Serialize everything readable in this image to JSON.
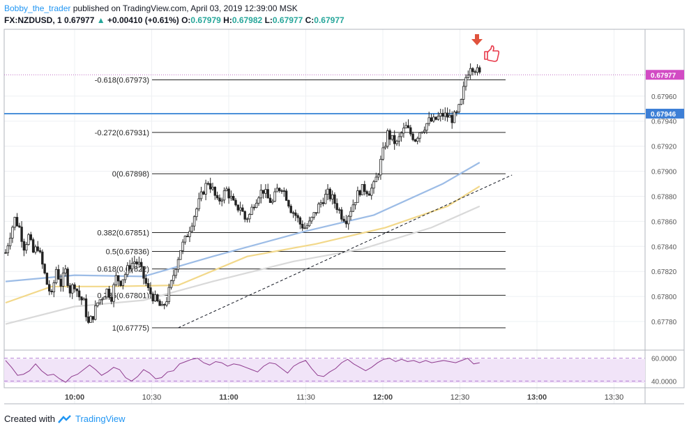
{
  "header": {
    "author": "Bobby_the_trader",
    "published_text": " published on TradingView.com, April 03, 2019 12:39:00 MSK"
  },
  "ohlc": {
    "symbol": "FX:NZDUSD, 1",
    "last": "0.67977",
    "arrow": "▲",
    "change": "+0.00410 (+0.61%)",
    "o_label": "O:",
    "o": "0.67979",
    "h_label": "H:",
    "h": "0.67982",
    "l_label": "L:",
    "l": "0.67977",
    "c_label": "C:",
    "c": "0.67977"
  },
  "footer": {
    "created_with": "Created with",
    "brand": "TradingView"
  },
  "colors": {
    "up": "#26a69a",
    "ma_blue": "#9cbce6",
    "ma_yellow": "#f2d88a",
    "ma_gray": "#d9d9d9",
    "level_line": "#2962ff",
    "price_badge": "#d24bc4",
    "rsi_line": "#8e3b8e",
    "rsi_band": "#f1e4f8",
    "arrow_down": "#e0533d",
    "thumb": "#e8394a"
  },
  "chart_data": {
    "type": "candlestick",
    "y_ticks": [
      "0.67960",
      "0.67940",
      "0.67920",
      "0.67900",
      "0.67880",
      "0.67860",
      "0.67840",
      "0.67820",
      "0.67800",
      "0.67780"
    ],
    "x_ticks": [
      "10:00",
      "10:30",
      "11:00",
      "11:30",
      "12:00",
      "12:30",
      "13:00",
      "13:30"
    ],
    "ylim": [
      0.67765,
      0.6801
    ],
    "current_price": "0.67977",
    "horizontal_level": "0.67946",
    "fib_levels": [
      {
        "label": "-0.618(0.67973)",
        "value": 0.67973
      },
      {
        "label": "-0.272(0.67931)",
        "value": 0.67931
      },
      {
        "label": "0(0.67898)",
        "value": 0.67898
      },
      {
        "label": "0.382(0.67851)",
        "value": 0.67851
      },
      {
        "label": "0.5(0.67836)",
        "value": 0.67836
      },
      {
        "label": "0.618(0.67822)",
        "value": 0.67822
      },
      {
        "label": "0.786(0.67801)",
        "value": 0.67801
      },
      {
        "label": "1(0.67775)",
        "value": 0.67775
      }
    ],
    "trendline": {
      "from": [
        75,
        0.67775
      ],
      "to": [
        214,
        0.67897
      ]
    },
    "price_series": [
      [
        0,
        0.67835
      ],
      [
        2,
        0.6785
      ],
      [
        4,
        0.67862
      ],
      [
        6,
        0.67855
      ],
      [
        8,
        0.6784
      ],
      [
        10,
        0.67848
      ],
      [
        12,
        0.67835
      ],
      [
        14,
        0.6784
      ],
      [
        16,
        0.67825
      ],
      [
        18,
        0.6781
      ],
      [
        20,
        0.678
      ],
      [
        22,
        0.67822
      ],
      [
        24,
        0.6781
      ],
      [
        26,
        0.6782
      ],
      [
        28,
        0.67805
      ],
      [
        30,
        0.6781
      ],
      [
        32,
        0.678
      ],
      [
        34,
        0.67795
      ],
      [
        36,
        0.67778
      ],
      [
        38,
        0.67785
      ],
      [
        40,
        0.67795
      ],
      [
        42,
        0.678
      ],
      [
        44,
        0.67805
      ],
      [
        46,
        0.678
      ],
      [
        48,
        0.67815
      ],
      [
        50,
        0.67812
      ],
      [
        52,
        0.67818
      ],
      [
        54,
        0.67825
      ],
      [
        56,
        0.67828
      ],
      [
        58,
        0.67825
      ],
      [
        60,
        0.67815
      ],
      [
        62,
        0.67805
      ],
      [
        64,
        0.678
      ],
      [
        66,
        0.67795
      ],
      [
        68,
        0.6779
      ],
      [
        70,
        0.67798
      ],
      [
        72,
        0.6781
      ],
      [
        74,
        0.67825
      ],
      [
        76,
        0.67838
      ],
      [
        78,
        0.67845
      ],
      [
        80,
        0.67855
      ],
      [
        82,
        0.67865
      ],
      [
        84,
        0.67875
      ],
      [
        86,
        0.67885
      ],
      [
        88,
        0.67892
      ],
      [
        90,
        0.67885
      ],
      [
        92,
        0.67875
      ],
      [
        94,
        0.6788
      ],
      [
        96,
        0.67885
      ],
      [
        98,
        0.67878
      ],
      [
        100,
        0.6787
      ],
      [
        102,
        0.67872
      ],
      [
        104,
        0.67862
      ],
      [
        106,
        0.67865
      ],
      [
        108,
        0.67875
      ],
      [
        110,
        0.67882
      ],
      [
        112,
        0.67885
      ],
      [
        114,
        0.67878
      ],
      [
        116,
        0.67875
      ],
      [
        118,
        0.67885
      ],
      [
        120,
        0.67888
      ],
      [
        122,
        0.6788
      ],
      [
        124,
        0.6787
      ],
      [
        126,
        0.67865
      ],
      [
        128,
        0.67858
      ],
      [
        130,
        0.67855
      ],
      [
        132,
        0.67858
      ],
      [
        134,
        0.67865
      ],
      [
        136,
        0.67872
      ],
      [
        138,
        0.67878
      ],
      [
        140,
        0.67882
      ],
      [
        142,
        0.67878
      ],
      [
        144,
        0.67872
      ],
      [
        146,
        0.67865
      ],
      [
        148,
        0.67862
      ],
      [
        150,
        0.6787
      ],
      [
        152,
        0.67878
      ],
      [
        154,
        0.67885
      ],
      [
        156,
        0.67886
      ],
      [
        158,
        0.67884
      ],
      [
        160,
        0.67888
      ],
      [
        162,
        0.679
      ],
      [
        164,
        0.67915
      ],
      [
        166,
        0.6793
      ],
      [
        168,
        0.67925
      ],
      [
        170,
        0.67922
      ],
      [
        172,
        0.6793
      ],
      [
        174,
        0.67935
      ],
      [
        176,
        0.6793
      ],
      [
        178,
        0.67926
      ],
      [
        180,
        0.67932
      ],
      [
        182,
        0.67936
      ],
      [
        184,
        0.6794
      ],
      [
        186,
        0.6794
      ],
      [
        188,
        0.67943
      ],
      [
        190,
        0.67945
      ],
      [
        192,
        0.67944
      ],
      [
        194,
        0.67942
      ],
      [
        196,
        0.67945
      ],
      [
        198,
        0.67955
      ],
      [
        200,
        0.67975
      ],
      [
        202,
        0.67985
      ],
      [
        204,
        0.67982
      ],
      [
        206,
        0.67977
      ]
    ],
    "ma_series": [
      {
        "color": "#9cbce6",
        "points": [
          [
            0,
            0.67812
          ],
          [
            30,
            0.67817
          ],
          [
            60,
            0.67816
          ],
          [
            90,
            0.67832
          ],
          [
            130,
            0.67852
          ],
          [
            160,
            0.67865
          ],
          [
            190,
            0.6789
          ],
          [
            206,
            0.67907
          ]
        ]
      },
      {
        "color": "#f2d88a",
        "points": [
          [
            0,
            0.67795
          ],
          [
            20,
            0.67808
          ],
          [
            45,
            0.67808
          ],
          [
            75,
            0.67809
          ],
          [
            105,
            0.67832
          ],
          [
            135,
            0.67842
          ],
          [
            165,
            0.67855
          ],
          [
            192,
            0.67872
          ],
          [
            206,
            0.67888
          ]
        ]
      },
      {
        "color": "#d9d9d9",
        "points": [
          [
            0,
            0.67778
          ],
          [
            30,
            0.67792
          ],
          [
            60,
            0.67797
          ],
          [
            90,
            0.67812
          ],
          [
            125,
            0.67828
          ],
          [
            155,
            0.67838
          ],
          [
            185,
            0.67855
          ],
          [
            206,
            0.67872
          ]
        ]
      }
    ],
    "rsi": {
      "levels": [
        "60.0000",
        "40.0000"
      ],
      "ylim": [
        36,
        64
      ],
      "values": [
        58,
        52,
        45,
        46,
        49,
        55,
        49,
        45,
        46,
        42,
        39,
        44,
        46,
        50,
        54,
        50,
        45,
        48,
        52,
        50,
        43,
        40,
        44,
        50,
        47,
        42,
        43,
        48,
        49,
        55,
        57,
        59,
        60,
        56,
        54,
        57,
        56,
        53,
        55,
        54,
        52,
        50,
        48,
        53,
        56,
        55,
        51,
        47,
        53,
        56,
        58,
        51,
        45,
        44,
        48,
        51,
        56,
        59,
        55,
        52,
        49,
        52,
        56,
        59,
        60,
        57,
        59,
        57,
        58,
        56,
        58,
        56,
        57,
        58,
        57,
        56,
        58,
        60,
        55,
        56
      ]
    }
  }
}
